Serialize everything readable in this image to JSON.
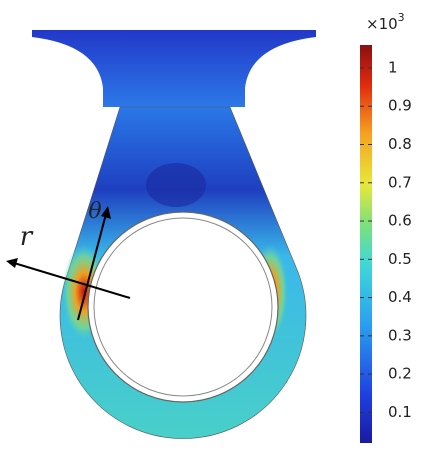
{
  "plot": {
    "labels": {
      "r": "r",
      "theta": "θ"
    }
  },
  "colorbar": {
    "multiplier_base": "×10",
    "multiplier_exponent": "3",
    "range": [
      0.02,
      1.06
    ],
    "ticks": [
      0.1,
      0.2,
      0.3,
      0.4,
      0.5,
      0.6,
      0.7,
      0.8,
      0.9,
      1
    ]
  }
}
